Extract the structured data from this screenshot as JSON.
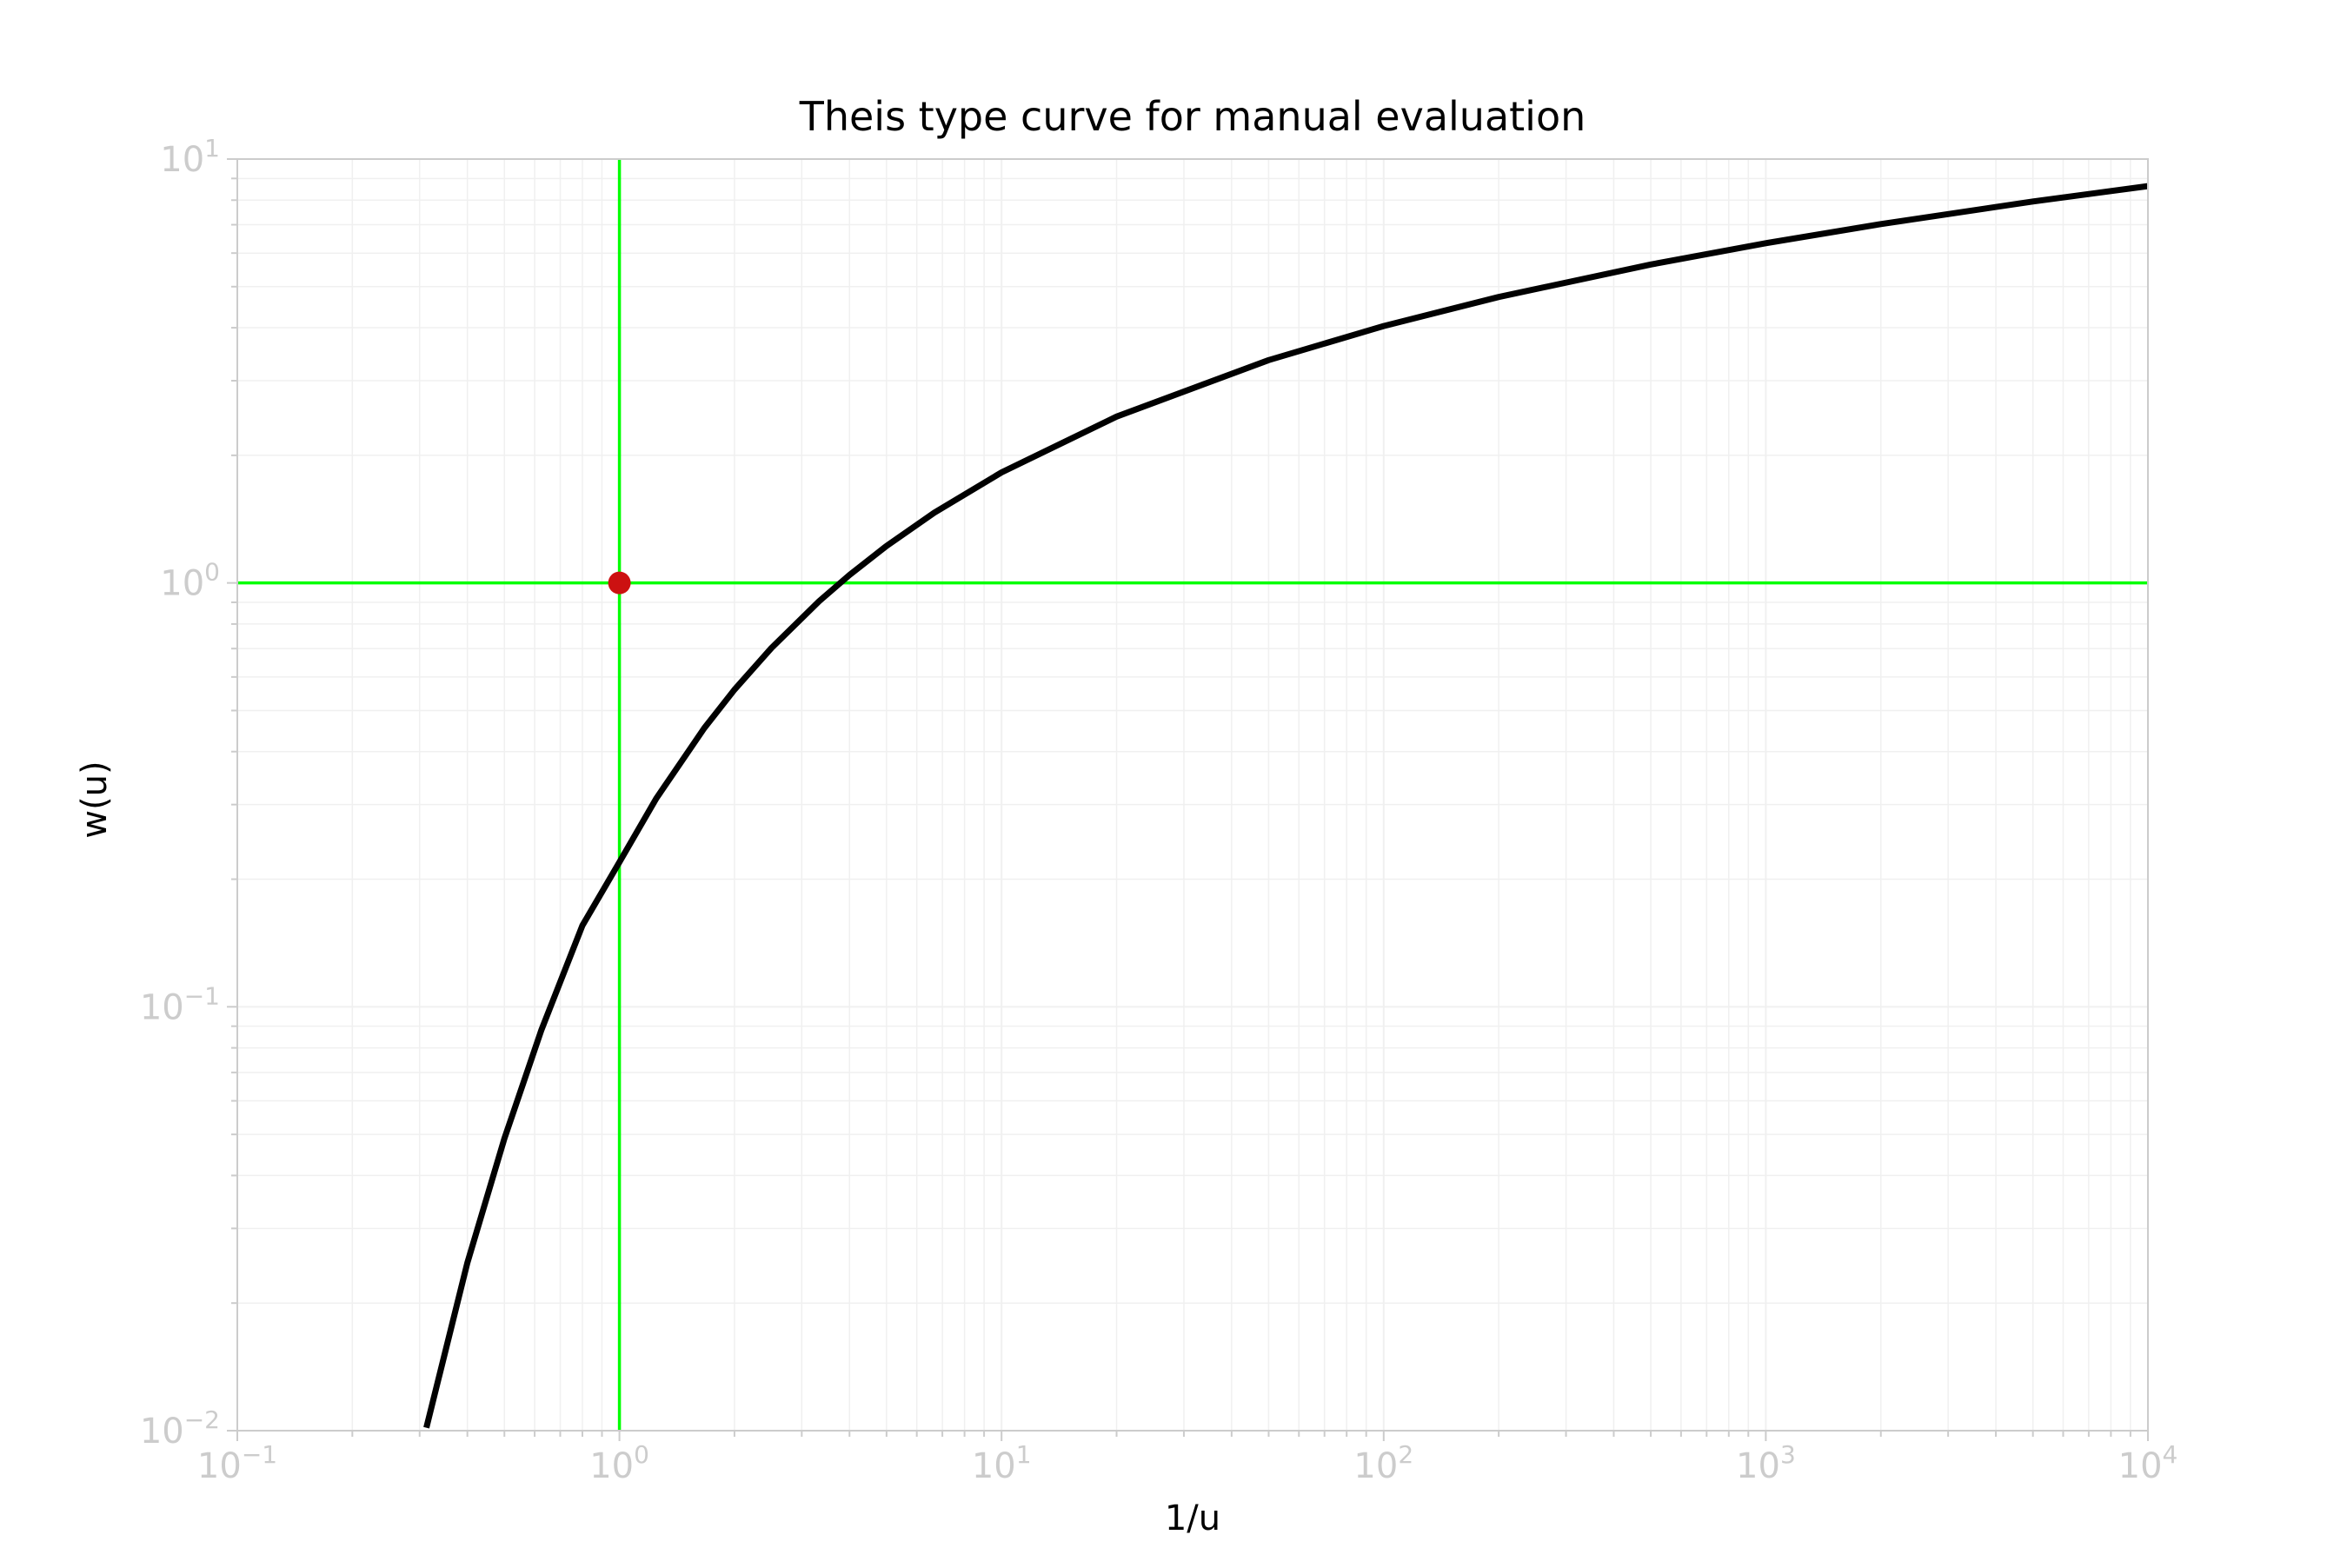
{
  "chart_data": {
    "type": "line",
    "title": "Theis type curve for manual evaluation",
    "xlabel": "1/u",
    "ylabel": "w(u)",
    "x_scale": "log",
    "y_scale": "log",
    "xlim": [
      0.1,
      10000
    ],
    "ylim": [
      0.01,
      10
    ],
    "grid": true,
    "x_ticks": [
      {
        "base": "10",
        "exp": "−1",
        "value": 0.1
      },
      {
        "base": "10",
        "exp": "0",
        "value": 1
      },
      {
        "base": "10",
        "exp": "1",
        "value": 10
      },
      {
        "base": "10",
        "exp": "2",
        "value": 100
      },
      {
        "base": "10",
        "exp": "3",
        "value": 1000
      },
      {
        "base": "10",
        "exp": "4",
        "value": 10000
      }
    ],
    "y_ticks": [
      {
        "base": "10",
        "exp": "−2",
        "value": 0.01
      },
      {
        "base": "10",
        "exp": "−1",
        "value": 0.1
      },
      {
        "base": "10",
        "exp": "0",
        "value": 1
      },
      {
        "base": "10",
        "exp": "1",
        "value": 10
      }
    ],
    "series": [
      {
        "color": "#000000",
        "x": [
          0.3125,
          0.4,
          0.5,
          0.625,
          0.8,
          1,
          1.25,
          1.667,
          2,
          2.5,
          3.333,
          4,
          5,
          6.667,
          10,
          20,
          50,
          100,
          200,
          500,
          1000,
          2000,
          5000,
          10000
        ],
        "y": [
          0.01016,
          0.02491,
          0.0489,
          0.08826,
          0.1555,
          0.2194,
          0.3106,
          0.4544,
          0.5598,
          0.7024,
          0.9057,
          1.0443,
          1.2227,
          1.4645,
          1.8229,
          2.4679,
          3.3547,
          4.0379,
          4.7261,
          5.6394,
          6.3315,
          7.0242,
          7.9402,
          8.6332
        ]
      }
    ],
    "reference_lines": {
      "color": "#00ff00",
      "vertical_x": 1,
      "horizontal_y": 1
    },
    "match_point": {
      "x": 1,
      "y": 1,
      "color": "#cc1111"
    },
    "colors": {
      "axis": "#cccccc",
      "tick_label": "#cccccc",
      "grid": "#f0f0f0",
      "text": "#000000"
    }
  }
}
